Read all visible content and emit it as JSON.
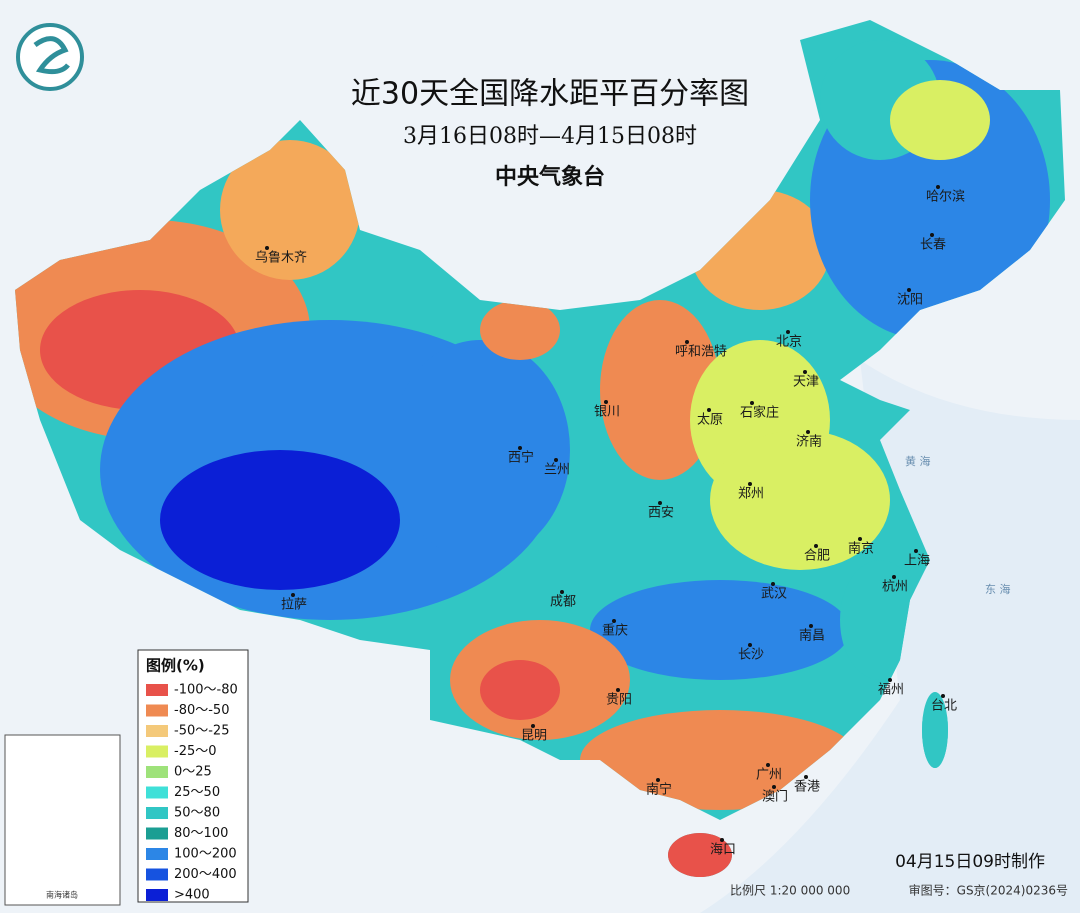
{
  "header": {
    "title": "近30天全国降水距平百分率图",
    "subtitle": "3月16日08时—4月15日08时",
    "agency": "中央气象台"
  },
  "legend": {
    "title": "图例(%)",
    "items": [
      {
        "label": "-100～-80",
        "color": "#e8524a"
      },
      {
        "label": "-80～-50",
        "color": "#ef8a52"
      },
      {
        "label": "-50～-25",
        "color": "#f4c97a"
      },
      {
        "label": "-25～0",
        "color": "#d9ef63"
      },
      {
        "label": "0～25",
        "color": "#9ee27a"
      },
      {
        "label": "25～50",
        "color": "#3fe0d8"
      },
      {
        "label": "50～80",
        "color": "#31c6c4"
      },
      {
        "label": "80～100",
        "color": "#1b9e93"
      },
      {
        "label": "100～200",
        "color": "#2c86e6"
      },
      {
        "label": "200～400",
        "color": "#1653e0"
      },
      {
        "label": ">400",
        "color": "#0b1fd6"
      }
    ]
  },
  "cities": [
    "乌鲁木齐",
    "呼和浩特",
    "北京",
    "天津",
    "银川",
    "太原",
    "石家庄",
    "济南",
    "西宁",
    "兰州",
    "郑州",
    "西安",
    "合肥",
    "南京",
    "上海",
    "成都",
    "武汉",
    "杭州",
    "重庆",
    "长沙",
    "南昌",
    "拉萨",
    "福州",
    "台北",
    "贵阳",
    "昆明",
    "南宁",
    "广州",
    "香港",
    "澳门",
    "海口",
    "哈尔滨",
    "长春",
    "沈阳"
  ],
  "seas": [
    "黄 海",
    "东 海"
  ],
  "inset": {
    "label": "南海诸岛"
  },
  "footer": {
    "made": "04月15日09时制作",
    "scale": "比例尺 1:20 000 000",
    "review": "审图号：GS京(2024)0236号"
  }
}
